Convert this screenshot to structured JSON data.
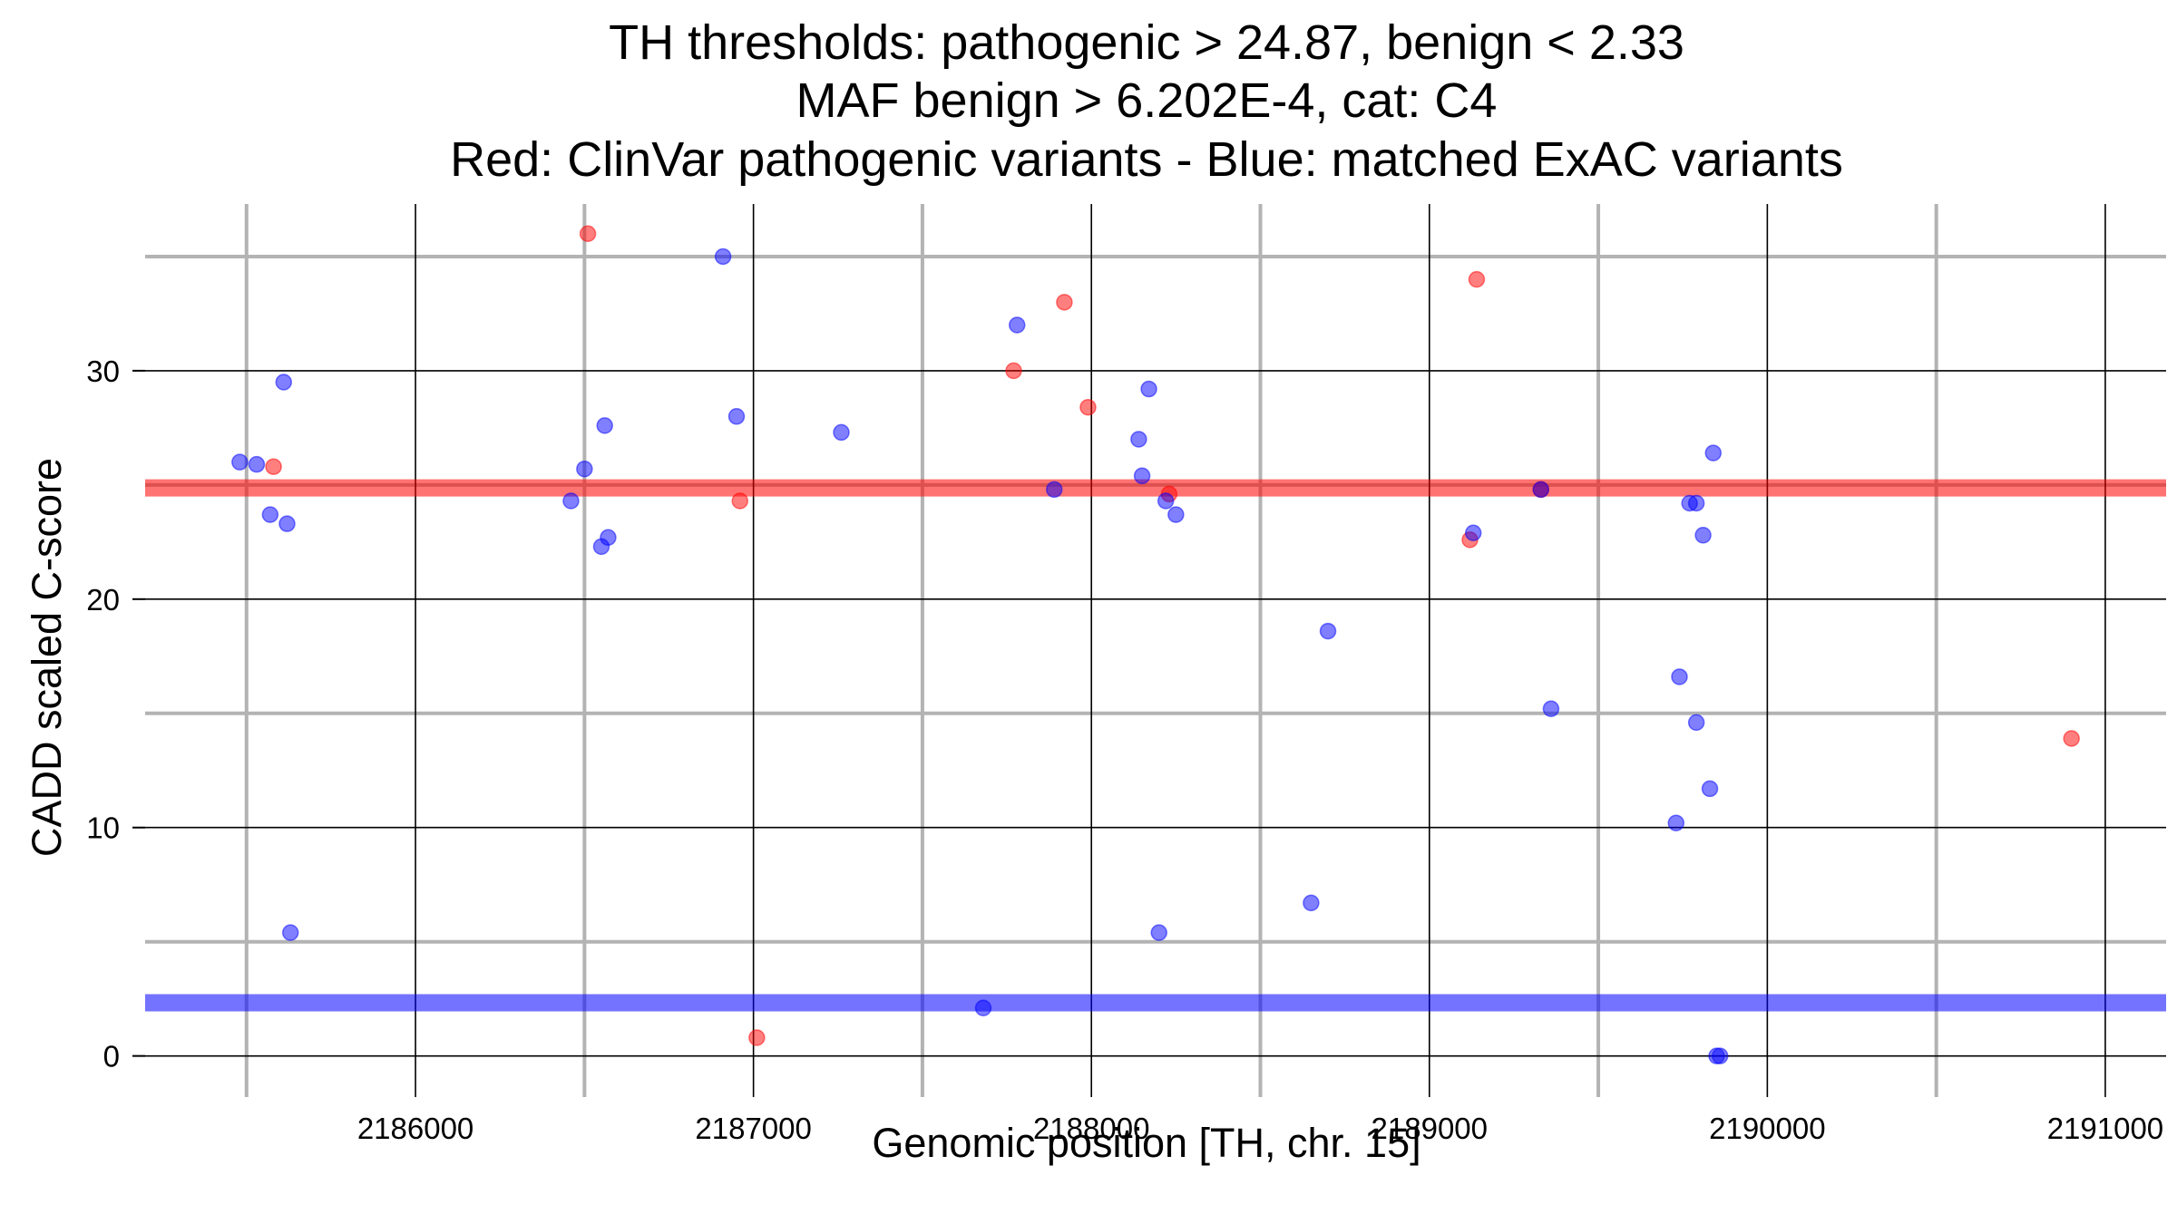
{
  "chart_data": {
    "type": "scatter",
    "title_lines": [
      "TH thresholds: pathogenic > 24.87, benign < 2.33",
      "MAF benign > 6.202E-4, cat: C4",
      "Red: ClinVar pathogenic variants - Blue: matched ExAC variants"
    ],
    "xlabel": "Genomic position [TH, chr. 15]",
    "ylabel": "CADD scaled C-score",
    "xlim": [
      2185200,
      2191180
    ],
    "ylim": [
      -1.8,
      37.3
    ],
    "x_ticks": [
      2186000,
      2187000,
      2188000,
      2189000,
      2190000,
      2191000
    ],
    "x_tick_labels": [
      "2186000",
      "2187000",
      "2188000",
      "2189000",
      "2190000",
      "2191000"
    ],
    "x_minor_grid": [
      2185500,
      2186500,
      2187500,
      2188500,
      2189500,
      2190500
    ],
    "y_ticks": [
      0,
      10,
      20,
      30
    ],
    "y_tick_labels": [
      "0",
      "10",
      "20",
      "30"
    ],
    "y_minor_grid": [
      5,
      15,
      25,
      35
    ],
    "grid": true,
    "thresholds": [
      {
        "value": 24.87,
        "color": "#ff0000"
      },
      {
        "value": 2.33,
        "color": "#0000ff"
      }
    ],
    "series": [
      {
        "color": "#ff0000",
        "points": [
          {
            "x": 2185580,
            "y": 25.8
          },
          {
            "x": 2186510,
            "y": 36.0
          },
          {
            "x": 2186960,
            "y": 24.3
          },
          {
            "x": 2187010,
            "y": 0.8
          },
          {
            "x": 2187770,
            "y": 30.0
          },
          {
            "x": 2187920,
            "y": 33.0
          },
          {
            "x": 2187990,
            "y": 28.4
          },
          {
            "x": 2188230,
            "y": 24.6
          },
          {
            "x": 2189120,
            "y": 22.6
          },
          {
            "x": 2189140,
            "y": 34.0
          },
          {
            "x": 2189330,
            "y": 24.8
          },
          {
            "x": 2190900,
            "y": 13.9
          }
        ]
      },
      {
        "color": "#0000ff",
        "points": [
          {
            "x": 2185480,
            "y": 26.0
          },
          {
            "x": 2185530,
            "y": 25.9
          },
          {
            "x": 2185570,
            "y": 23.7
          },
          {
            "x": 2185610,
            "y": 29.5
          },
          {
            "x": 2185620,
            "y": 23.3
          },
          {
            "x": 2185630,
            "y": 5.4
          },
          {
            "x": 2186460,
            "y": 24.3
          },
          {
            "x": 2186500,
            "y": 25.7
          },
          {
            "x": 2186550,
            "y": 22.3
          },
          {
            "x": 2186560,
            "y": 27.6
          },
          {
            "x": 2186570,
            "y": 22.7
          },
          {
            "x": 2186910,
            "y": 35.0
          },
          {
            "x": 2186950,
            "y": 28.0
          },
          {
            "x": 2187260,
            "y": 27.3
          },
          {
            "x": 2187680,
            "y": 2.1
          },
          {
            "x": 2187780,
            "y": 32.0
          },
          {
            "x": 2187890,
            "y": 24.8
          },
          {
            "x": 2188140,
            "y": 27.0
          },
          {
            "x": 2188150,
            "y": 25.4
          },
          {
            "x": 2188170,
            "y": 29.2
          },
          {
            "x": 2188200,
            "y": 5.4
          },
          {
            "x": 2188220,
            "y": 24.3
          },
          {
            "x": 2188250,
            "y": 23.7
          },
          {
            "x": 2188650,
            "y": 6.7
          },
          {
            "x": 2188700,
            "y": 18.6
          },
          {
            "x": 2189130,
            "y": 22.9
          },
          {
            "x": 2189330,
            "y": 24.8
          },
          {
            "x": 2189360,
            "y": 15.2
          },
          {
            "x": 2189730,
            "y": 10.2
          },
          {
            "x": 2189740,
            "y": 16.6
          },
          {
            "x": 2189770,
            "y": 24.2
          },
          {
            "x": 2189790,
            "y": 24.2
          },
          {
            "x": 2189790,
            "y": 14.6
          },
          {
            "x": 2189810,
            "y": 22.8
          },
          {
            "x": 2189830,
            "y": 11.7
          },
          {
            "x": 2189840,
            "y": 26.4
          },
          {
            "x": 2189850,
            "y": 0.0
          },
          {
            "x": 2189860,
            "y": 0.0
          }
        ]
      }
    ]
  }
}
